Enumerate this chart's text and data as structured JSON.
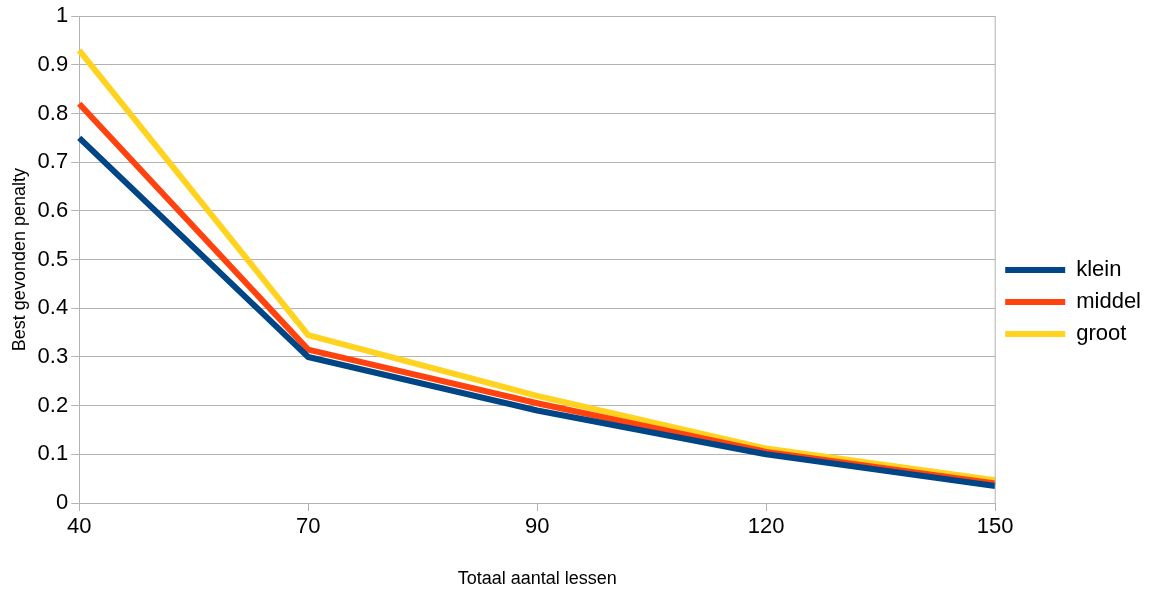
{
  "chart_data": {
    "type": "line",
    "xlabel": "Totaal aantal lessen",
    "ylabel": "Best gevonden penalty",
    "categories": [
      "40",
      "70",
      "90",
      "120",
      "150"
    ],
    "series": [
      {
        "name": "klein",
        "color": "#004586",
        "values": [
          0.75,
          0.3,
          0.19,
          0.1,
          0.035
        ]
      },
      {
        "name": "middel",
        "color": "#ff420e",
        "values": [
          0.82,
          0.315,
          0.205,
          0.105,
          0.04
        ]
      },
      {
        "name": "groot",
        "color": "#ffd320",
        "values": [
          0.93,
          0.345,
          0.22,
          0.112,
          0.047
        ]
      }
    ],
    "ylim": [
      0,
      1
    ],
    "yticks": [
      0,
      0.1,
      0.2,
      0.3,
      0.4,
      0.5,
      0.6,
      0.7,
      0.8,
      0.9,
      1
    ],
    "grid": "y",
    "legend": "right",
    "marker": "none",
    "line_style": "solid"
  }
}
